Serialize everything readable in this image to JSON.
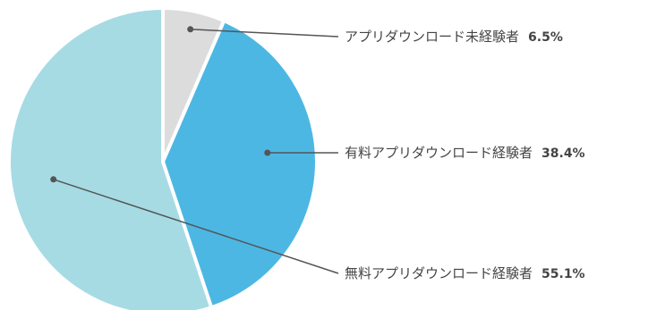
{
  "chart_data": {
    "type": "pie",
    "start_angle": "12 o'clock, clockwise",
    "slices": [
      {
        "label": "アプリダウンロード未経験者",
        "value": 6.5,
        "value_label": "6.5%",
        "color": "#dcdcdc"
      },
      {
        "label": "有料アプリダウンロード経験者",
        "value": 38.4,
        "value_label": "38.4%",
        "color": "#4db7e3"
      },
      {
        "label": "無料アプリダウンロード経験者",
        "value": 55.1,
        "value_label": "55.1%",
        "color": "#a6dbe4"
      }
    ],
    "leader_color": "#555555"
  }
}
